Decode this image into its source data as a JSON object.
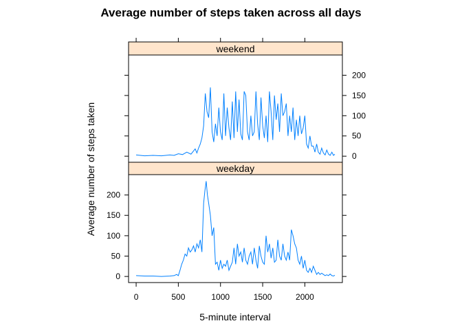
{
  "chart_data": {
    "type": "line",
    "title": "Average number of steps taken across all days",
    "xlabel": "5-minute interval",
    "ylabel": "Average number of steps taken",
    "xlim": [
      -90,
      2445
    ],
    "ylim": [
      -15,
      250
    ],
    "x_ticks": [
      0,
      500,
      1000,
      1500,
      2000
    ],
    "y_ticks": [
      0,
      50,
      100,
      150,
      200
    ],
    "grid": false,
    "legend": "none",
    "color": "#0080ff",
    "panels": [
      {
        "name": "weekend",
        "x": [
          0,
          100,
          200,
          300,
          400,
          450,
          500,
          550,
          600,
          650,
          700,
          720,
          740,
          760,
          780,
          800,
          820,
          840,
          860,
          880,
          900,
          920,
          940,
          960,
          980,
          1000,
          1020,
          1040,
          1060,
          1080,
          1100,
          1120,
          1140,
          1160,
          1180,
          1200,
          1220,
          1240,
          1260,
          1280,
          1300,
          1320,
          1340,
          1360,
          1380,
          1400,
          1420,
          1440,
          1460,
          1480,
          1500,
          1520,
          1540,
          1560,
          1580,
          1600,
          1620,
          1640,
          1660,
          1680,
          1700,
          1720,
          1740,
          1760,
          1780,
          1800,
          1820,
          1840,
          1860,
          1880,
          1900,
          1920,
          1940,
          1960,
          1980,
          2000,
          2020,
          2040,
          2060,
          2080,
          2100,
          2120,
          2140,
          2160,
          2180,
          2200,
          2220,
          2240,
          2260,
          2280,
          2300,
          2320,
          2340,
          2355
        ],
        "values": [
          3,
          1,
          2,
          1,
          3,
          2,
          6,
          4,
          10,
          5,
          18,
          8,
          20,
          30,
          45,
          75,
          155,
          110,
          95,
          170,
          60,
          35,
          80,
          50,
          120,
          60,
          40,
          155,
          50,
          120,
          70,
          40,
          135,
          45,
          160,
          60,
          140,
          55,
          40,
          160,
          150,
          60,
          40,
          100,
          50,
          60,
          160,
          80,
          40,
          145,
          75,
          45,
          100,
          35,
          160,
          110,
          40,
          150,
          90,
          130,
          60,
          155,
          100,
          110,
          130,
          50,
          100,
          60,
          120,
          40,
          90,
          50,
          100,
          55,
          70,
          100,
          30,
          20,
          50,
          25,
          25,
          10,
          30,
          10,
          5,
          20,
          8,
          3,
          15,
          5,
          2,
          10,
          2,
          5
        ]
      },
      {
        "name": "weekday",
        "x": [
          0,
          100,
          200,
          300,
          400,
          450,
          480,
          500,
          520,
          540,
          560,
          580,
          600,
          620,
          640,
          660,
          680,
          700,
          720,
          740,
          760,
          780,
          800,
          815,
          830,
          845,
          860,
          880,
          900,
          920,
          940,
          960,
          980,
          1000,
          1020,
          1040,
          1060,
          1080,
          1100,
          1120,
          1140,
          1160,
          1180,
          1200,
          1220,
          1240,
          1260,
          1280,
          1300,
          1320,
          1340,
          1360,
          1380,
          1400,
          1420,
          1440,
          1460,
          1480,
          1500,
          1520,
          1540,
          1560,
          1580,
          1600,
          1620,
          1640,
          1660,
          1680,
          1700,
          1720,
          1740,
          1760,
          1780,
          1800,
          1820,
          1840,
          1860,
          1880,
          1900,
          1920,
          1940,
          1960,
          1980,
          2000,
          2020,
          2040,
          2060,
          2080,
          2100,
          2120,
          2140,
          2160,
          2180,
          2200,
          2220,
          2240,
          2260,
          2280,
          2300,
          2320,
          2340,
          2355
        ],
        "values": [
          2,
          1,
          1,
          0,
          1,
          2,
          5,
          2,
          15,
          30,
          40,
          55,
          50,
          70,
          60,
          65,
          75,
          60,
          80,
          70,
          90,
          60,
          180,
          210,
          234,
          200,
          180,
          150,
          100,
          120,
          30,
          35,
          15,
          40,
          20,
          30,
          25,
          40,
          15,
          25,
          35,
          70,
          30,
          80,
          50,
          60,
          35,
          70,
          40,
          30,
          50,
          60,
          30,
          70,
          40,
          20,
          75,
          50,
          35,
          30,
          100,
          60,
          80,
          45,
          70,
          35,
          40,
          90,
          50,
          40,
          80,
          50,
          40,
          60,
          40,
          115,
          100,
          80,
          70,
          40,
          30,
          50,
          20,
          40,
          15,
          10,
          20,
          10,
          25,
          15,
          5,
          10,
          5,
          8,
          5,
          2,
          4,
          2,
          6,
          2,
          1,
          3
        ]
      }
    ]
  }
}
